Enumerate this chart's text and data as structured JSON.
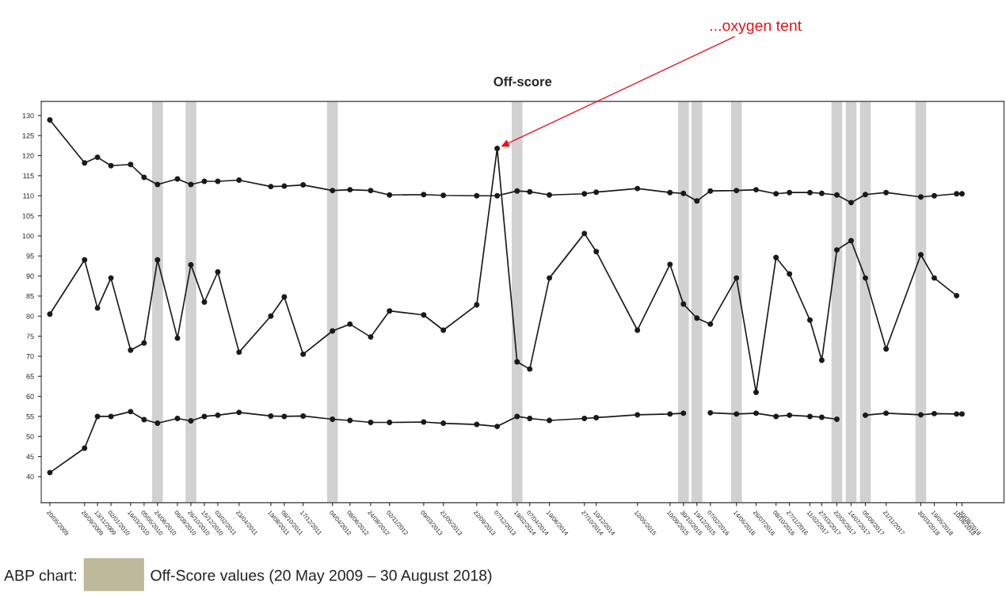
{
  "chart_data": {
    "type": "line",
    "title": "Off-score",
    "x": [
      "2009-05-20",
      "2009-09-26",
      "2009-11-13",
      "2010-01-02",
      "2010-03-16",
      "2010-05-05",
      "2010-06-24",
      "2010-09-06",
      "2010-10-26",
      "2010-12-15",
      "2011-02-03",
      "2011-04-23",
      "2011-08-19",
      "2011-10-08",
      "2011-12-17",
      "2012-04-04",
      "2012-06-08",
      "2012-08-24",
      "2012-11-02",
      "2013-03-09",
      "2013-05-21",
      "2013-09-22",
      "2013-12-07",
      "2014-02-19",
      "2014-04-07",
      "2014-06-19",
      "2014-10-27",
      "2014-12-10",
      "2015-05-12",
      "2015-09-10",
      "2015-10-30",
      "2015-12-19",
      "2016-02-07",
      "2016-05-14",
      "2016-07-26",
      "2016-10-08",
      "2016-11-27",
      "2017-02-11",
      "2017-03-27",
      "2017-05-22",
      "2017-07-14",
      "2017-09-05",
      "2017-11-21",
      "2018-03-30",
      "2018-05-19",
      "2018-08-10",
      "2018-08-30"
    ],
    "xlim": [
      "2009-04-18",
      "2019-02-02"
    ],
    "xticks": [
      {
        "value": "2009-05-20",
        "label": "20/05/2009"
      },
      {
        "value": "2009-09-26",
        "label": "26/09/2009"
      },
      {
        "value": "2009-11-13",
        "label": "13/11/2009"
      },
      {
        "value": "2010-01-02",
        "label": "02/01/2010"
      },
      {
        "value": "2010-03-16",
        "label": "16/03/2010"
      },
      {
        "value": "2010-05-05",
        "label": "05/05/2010"
      },
      {
        "value": "2010-06-24",
        "label": "24/06/2010"
      },
      {
        "value": "2010-09-06",
        "label": "06/09/2010"
      },
      {
        "value": "2010-10-26",
        "label": "26/10/2010"
      },
      {
        "value": "2010-12-15",
        "label": "15/12/2010"
      },
      {
        "value": "2011-02-03",
        "label": "03/02/2011"
      },
      {
        "value": "2011-04-23",
        "label": "23/04/2011"
      },
      {
        "value": "2011-08-19",
        "label": "19/08/2011"
      },
      {
        "value": "2011-10-08",
        "label": "08/10/2011"
      },
      {
        "value": "2011-12-17",
        "label": "17/12/2011"
      },
      {
        "value": "2012-04-04",
        "label": "04/04/2012"
      },
      {
        "value": "2012-06-08",
        "label": "08/06/2012"
      },
      {
        "value": "2012-08-24",
        "label": "24/08/2012"
      },
      {
        "value": "2012-11-02",
        "label": "02/11/2012"
      },
      {
        "value": "2013-03-09",
        "label": "09/03/2013"
      },
      {
        "value": "2013-05-21",
        "label": "21/05/2013"
      },
      {
        "value": "2013-09-22",
        "label": "22/09/2013"
      },
      {
        "value": "2013-12-07",
        "label": "07/12/2013"
      },
      {
        "value": "2014-02-19",
        "label": "19/02/2014"
      },
      {
        "value": "2014-04-07",
        "label": "07/04/2014"
      },
      {
        "value": "2014-06-19",
        "label": "19/06/2014"
      },
      {
        "value": "2014-10-27",
        "label": "27/10/2014"
      },
      {
        "value": "2014-12-10",
        "label": "10/12/2014"
      },
      {
        "value": "2015-05-12",
        "label": "12/05/2015"
      },
      {
        "value": "2015-09-10",
        "label": "10/09/2015"
      },
      {
        "value": "2015-10-30",
        "label": "30/10/2015"
      },
      {
        "value": "2015-12-19",
        "label": "19/12/2015"
      },
      {
        "value": "2016-02-07",
        "label": "07/02/2016"
      },
      {
        "value": "2016-05-14",
        "label": "14/05/2016"
      },
      {
        "value": "2016-07-26",
        "label": "26/07/2016"
      },
      {
        "value": "2016-10-08",
        "label": "08/10/2016"
      },
      {
        "value": "2016-11-27",
        "label": "27/11/2016"
      },
      {
        "value": "2017-02-11",
        "label": "11/02/2017"
      },
      {
        "value": "2017-03-27",
        "label": "27/03/2017"
      },
      {
        "value": "2017-05-22",
        "label": "22/05/2017"
      },
      {
        "value": "2017-07-14",
        "label": "14/07/2017"
      },
      {
        "value": "2017-09-05",
        "label": "05/09/2017"
      },
      {
        "value": "2017-11-21",
        "label": "21/11/2017"
      },
      {
        "value": "2018-03-30",
        "label": "30/03/2018"
      },
      {
        "value": "2018-05-19",
        "label": "19/05/2018"
      },
      {
        "value": "2018-08-10",
        "label": "10/08/2018"
      },
      {
        "value": "2018-08-30",
        "label": "30/08/2018"
      }
    ],
    "ylim": [
      33.5,
      133.5
    ],
    "yticks": [
      40,
      45,
      50,
      55,
      60,
      65,
      70,
      75,
      80,
      85,
      90,
      95,
      100,
      105,
      110,
      115,
      120,
      125,
      130
    ],
    "marker": "circle",
    "line_style": "solid",
    "series": [
      {
        "color": "#1a1a1a",
        "values": [
          128.9,
          118.2,
          119.6,
          117.5,
          117.8,
          114.6,
          112.8,
          114.2,
          112.8,
          113.6,
          113.6,
          113.9,
          112.3,
          112.4,
          112.7,
          111.3,
          111.5,
          111.3,
          110.2,
          110.3,
          110.1,
          110.0,
          110.0,
          111.2,
          111.0,
          110.2,
          110.5,
          110.9,
          111.8,
          110.8,
          110.6,
          108.7,
          111.2,
          111.3,
          111.5,
          110.5,
          110.8,
          110.8,
          110.6,
          110.2,
          108.3,
          110.3,
          110.8,
          109.7,
          110.0,
          110.5,
          110.5
        ]
      },
      {
        "color": "#1a1a1a",
        "values": [
          80.5,
          94.0,
          82.0,
          89.5,
          71.5,
          73.3,
          94.0,
          74.5,
          92.8,
          83.5,
          91.0,
          71.0,
          80.0,
          84.8,
          70.5,
          76.3,
          78.0,
          74.8,
          81.3,
          80.3,
          76.5,
          82.8,
          121.8,
          68.6,
          66.8,
          89.5,
          100.6,
          96.1,
          76.5,
          92.9,
          83.0,
          79.5,
          78.0,
          89.5,
          61.0,
          94.6,
          90.5,
          79.0,
          69.0,
          96.5,
          98.8,
          89.5,
          71.8,
          95.3,
          89.5,
          85.1,
          null
        ]
      },
      {
        "color": "#1a1a1a",
        "values": [
          41.0,
          47.1,
          55.0,
          55.0,
          56.2,
          54.2,
          53.3,
          54.5,
          53.9,
          55.0,
          55.3,
          56.0,
          55.1,
          55.0,
          55.1,
          54.3,
          54.0,
          53.5,
          53.5,
          53.6,
          53.3,
          53.0,
          52.5,
          55.0,
          54.5,
          54.0,
          54.5,
          54.7,
          55.4,
          55.6,
          55.8,
          null,
          55.9,
          55.6,
          55.8,
          55.0,
          55.3,
          55.0,
          54.8,
          54.3,
          null,
          55.3,
          55.8,
          55.4,
          55.7,
          55.6,
          55.6
        ]
      }
    ],
    "bands": [
      {
        "axis": "x",
        "from": "2010-06-04",
        "to": "2010-07-14",
        "color": "#bdbdbd"
      },
      {
        "axis": "x",
        "from": "2010-10-06",
        "to": "2010-11-15",
        "color": "#bdbdbd"
      },
      {
        "axis": "x",
        "from": "2012-03-15",
        "to": "2012-04-24",
        "color": "#bdbdbd"
      },
      {
        "axis": "x",
        "from": "2014-01-30",
        "to": "2014-03-11",
        "color": "#bdbdbd"
      },
      {
        "axis": "x",
        "from": "2015-10-10",
        "to": "2015-11-19",
        "color": "#bdbdbd"
      },
      {
        "axis": "x",
        "from": "2015-11-29",
        "to": "2016-01-08",
        "color": "#bdbdbd"
      },
      {
        "axis": "x",
        "from": "2016-04-24",
        "to": "2016-06-03",
        "color": "#bdbdbd"
      },
      {
        "axis": "x",
        "from": "2017-05-02",
        "to": "2017-06-11",
        "color": "#bdbdbd"
      },
      {
        "axis": "x",
        "from": "2017-06-24",
        "to": "2017-08-03",
        "color": "#bdbdbd"
      },
      {
        "axis": "x",
        "from": "2017-08-16",
        "to": "2017-09-25",
        "color": "#bdbdbd"
      },
      {
        "axis": "x",
        "from": "2018-03-10",
        "to": "2018-04-19",
        "color": "#bdbdbd"
      }
    ],
    "annotations": [
      {
        "text": "...oxygen tent",
        "x": "2013-12-07",
        "y": 121.8
      },
      "ABP chart:",
      "Off-Score values (20 May 2009 – 30 August 2018)"
    ]
  }
}
